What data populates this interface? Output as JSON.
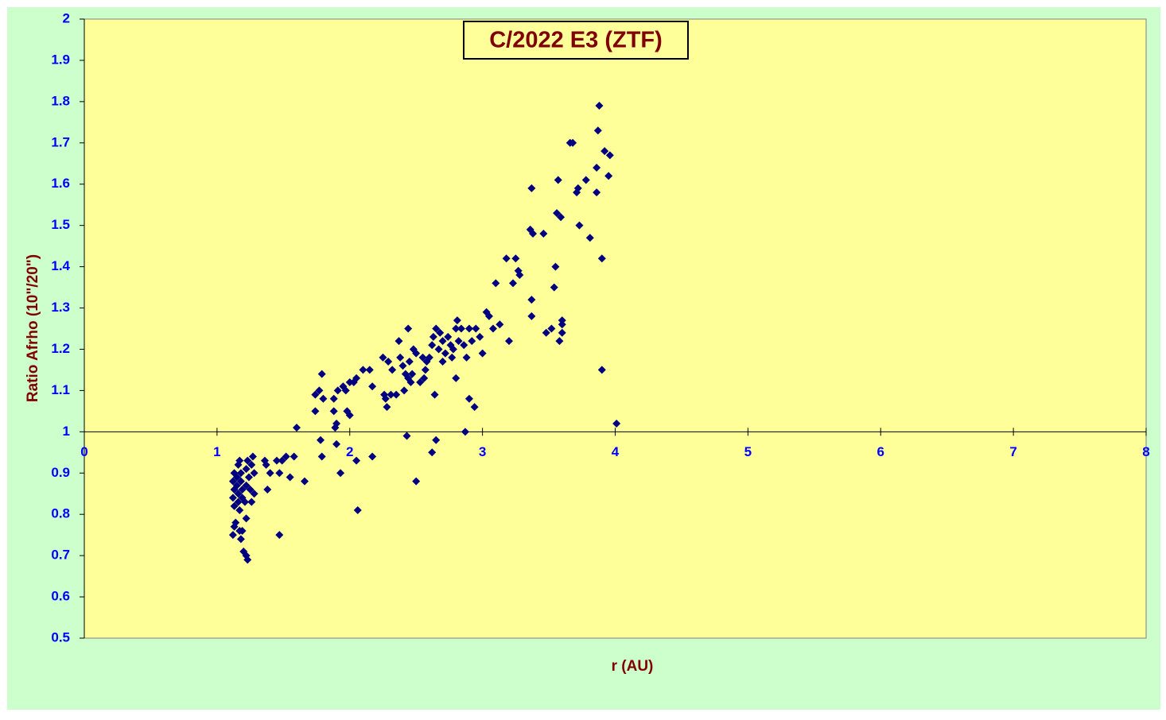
{
  "chart_data": {
    "type": "scatter",
    "title": "C/2022 E3 (ZTF)",
    "x_label": "r (AU)",
    "y_label": "Ratio Afrho (10\"/20\")",
    "xlim": [
      0,
      8
    ],
    "xticks": [
      0,
      1,
      2,
      3,
      4,
      5,
      6,
      7,
      8
    ],
    "ylim": [
      0.5,
      2
    ],
    "yticks": [
      0.5,
      0.6,
      0.7,
      0.8,
      0.9,
      1,
      1.1,
      1.2,
      1.3,
      1.4,
      1.5,
      1.6,
      1.7,
      1.8,
      1.9,
      2
    ],
    "x_axis_crosses_at": 1,
    "color": "#000080",
    "plot_background": "#ffff99",
    "background": "#ccffcc",
    "x": [
      1.12,
      1.13,
      1.14,
      1.13,
      1.12,
      1.13,
      1.12,
      1.13,
      1.15,
      1.15,
      1.16,
      1.16,
      1.17,
      1.16,
      1.17,
      1.18,
      1.18,
      1.19,
      1.19,
      1.17,
      1.18,
      1.19,
      1.2,
      1.22,
      1.23,
      1.22,
      1.21,
      1.22,
      1.22,
      1.23,
      1.24,
      1.25,
      1.26,
      1.26,
      1.27,
      1.28,
      1.28,
      1.36,
      1.37,
      1.38,
      1.4,
      1.45,
      1.47,
      1.47,
      1.49,
      1.52,
      1.55,
      1.58,
      1.6,
      1.66,
      1.74,
      1.74,
      1.77,
      1.78,
      1.79,
      1.79,
      1.8,
      1.88,
      1.88,
      1.89,
      1.9,
      1.9,
      1.91,
      1.93,
      1.95,
      1.97,
      1.98,
      2.0,
      2.0,
      2.03,
      2.05,
      2.05,
      2.06,
      2.1,
      2.15,
      2.17,
      2.17,
      2.25,
      2.26,
      2.27,
      2.28,
      2.29,
      2.31,
      2.32,
      2.35,
      2.37,
      2.38,
      2.4,
      2.41,
      2.42,
      2.43,
      2.44,
      2.44,
      2.45,
      2.46,
      2.47,
      2.48,
      2.5,
      2.5,
      2.53,
      2.55,
      2.56,
      2.57,
      2.58,
      2.6,
      2.62,
      2.62,
      2.63,
      2.64,
      2.65,
      2.65,
      2.67,
      2.68,
      2.7,
      2.7,
      2.72,
      2.74,
      2.76,
      2.77,
      2.78,
      2.8,
      2.8,
      2.81,
      2.82,
      2.84,
      2.86,
      2.87,
      2.88,
      2.9,
      2.9,
      2.92,
      2.94,
      2.95,
      2.98,
      3.0,
      3.03,
      3.05,
      3.08,
      3.1,
      3.13,
      3.18,
      3.2,
      3.23,
      3.25,
      3.27,
      3.28,
      3.36,
      3.37,
      3.37,
      3.37,
      3.38,
      3.46,
      3.48,
      3.52,
      3.54,
      3.55,
      3.56,
      3.57,
      3.58,
      3.59,
      3.6,
      3.6,
      3.6,
      3.66,
      3.68,
      3.71,
      3.72,
      3.73,
      3.78,
      3.81,
      3.86,
      3.86,
      3.87,
      3.88,
      3.9,
      3.9,
      3.92,
      3.95,
      3.96,
      4.01
    ],
    "values": [
      0.75,
      0.77,
      0.78,
      0.82,
      0.84,
      0.86,
      0.88,
      0.9,
      0.89,
      0.87,
      0.85,
      0.83,
      0.81,
      0.92,
      0.93,
      0.9,
      0.88,
      0.86,
      0.84,
      0.76,
      0.74,
      0.76,
      0.71,
      0.7,
      0.69,
      0.79,
      0.83,
      0.87,
      0.91,
      0.93,
      0.89,
      0.86,
      0.83,
      0.92,
      0.94,
      0.9,
      0.85,
      0.93,
      0.92,
      0.86,
      0.9,
      0.93,
      0.9,
      0.75,
      0.93,
      0.94,
      0.89,
      0.94,
      1.01,
      0.88,
      1.05,
      1.09,
      1.1,
      0.98,
      0.94,
      1.14,
      1.08,
      1.08,
      1.05,
      1.01,
      0.97,
      1.02,
      1.1,
      0.9,
      1.11,
      1.1,
      1.05,
      1.04,
      1.12,
      1.12,
      1.13,
      0.93,
      0.81,
      1.15,
      1.15,
      1.11,
      0.94,
      1.18,
      1.09,
      1.08,
      1.06,
      1.17,
      1.09,
      1.15,
      1.09,
      1.22,
      1.18,
      1.16,
      1.1,
      1.14,
      0.99,
      1.25,
      1.13,
      1.17,
      1.12,
      1.14,
      1.2,
      1.19,
      0.88,
      1.12,
      1.18,
      1.13,
      1.15,
      1.17,
      1.18,
      0.95,
      1.21,
      1.23,
      1.09,
      0.98,
      1.25,
      1.2,
      1.24,
      1.17,
      1.22,
      1.19,
      1.23,
      1.21,
      1.18,
      1.2,
      1.13,
      1.25,
      1.27,
      1.22,
      1.25,
      1.21,
      1.0,
      1.18,
      1.25,
      1.08,
      1.22,
      1.06,
      1.25,
      1.23,
      1.19,
      1.29,
      1.28,
      1.25,
      1.36,
      1.26,
      1.42,
      1.22,
      1.36,
      1.42,
      1.39,
      1.38,
      1.49,
      1.59,
      1.32,
      1.28,
      1.48,
      1.48,
      1.24,
      1.25,
      1.35,
      1.4,
      1.53,
      1.61,
      1.22,
      1.52,
      1.27,
      1.24,
      1.26,
      1.7,
      1.7,
      1.58,
      1.59,
      1.5,
      1.61,
      1.47,
      1.58,
      1.64,
      1.73,
      1.79,
      1.15,
      1.42,
      1.68,
      1.62,
      1.67,
      1.02
    ]
  }
}
